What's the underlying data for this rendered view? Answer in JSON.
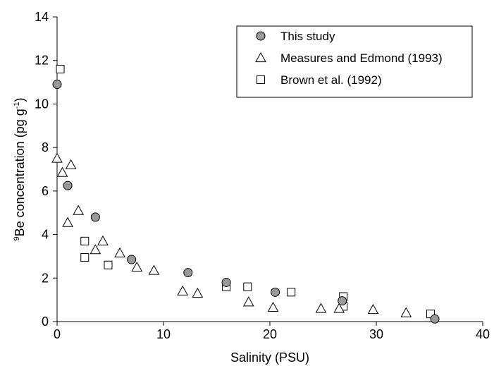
{
  "chart_data": {
    "type": "scatter",
    "title": "",
    "xlabel": "Salinity (PSU)",
    "ylabel": {
      "superscript": "9",
      "main": "Be concentration (pg g",
      "exponent": "-1",
      "close": ")"
    },
    "xlim": [
      0,
      40
    ],
    "ylim": [
      0,
      14
    ],
    "xticks": [
      "0",
      "10",
      "20",
      "30",
      "40"
    ],
    "yticks": [
      "0",
      "2",
      "4",
      "6",
      "8",
      "10",
      "12",
      "14"
    ],
    "grid": false,
    "legend_position": "top-right",
    "series": [
      {
        "name": "This study",
        "marker": "circle",
        "fill": "#999999",
        "points": [
          [
            0.0,
            10.9
          ],
          [
            1.0,
            6.25
          ],
          [
            3.6,
            4.8
          ],
          [
            7.0,
            2.85
          ],
          [
            12.3,
            2.25
          ],
          [
            15.9,
            1.8
          ],
          [
            20.5,
            1.35
          ],
          [
            26.8,
            0.95
          ],
          [
            35.5,
            0.12
          ]
        ]
      },
      {
        "name": "Measures and Edmond (1993)",
        "marker": "triangle",
        "fill": "#ffffff",
        "points": [
          [
            0.0,
            7.5
          ],
          [
            0.5,
            6.85
          ],
          [
            1.3,
            7.2
          ],
          [
            1.0,
            4.55
          ],
          [
            2.0,
            5.1
          ],
          [
            3.6,
            3.3
          ],
          [
            4.3,
            3.7
          ],
          [
            5.9,
            3.15
          ],
          [
            7.5,
            2.5
          ],
          [
            9.1,
            2.35
          ],
          [
            11.8,
            1.4
          ],
          [
            13.2,
            1.3
          ],
          [
            18.0,
            0.9
          ],
          [
            20.3,
            0.65
          ],
          [
            24.8,
            0.6
          ],
          [
            26.5,
            0.6
          ],
          [
            29.7,
            0.55
          ],
          [
            32.8,
            0.4
          ]
        ]
      },
      {
        "name": "Brown et al. (1992)",
        "marker": "square",
        "fill": "#ffffff",
        "points": [
          [
            0.3,
            11.6
          ],
          [
            2.6,
            3.7
          ],
          [
            2.6,
            2.95
          ],
          [
            4.8,
            2.6
          ],
          [
            15.9,
            1.6
          ],
          [
            17.9,
            1.6
          ],
          [
            22.0,
            1.35
          ],
          [
            26.9,
            1.15
          ],
          [
            26.9,
            0.7
          ],
          [
            35.1,
            0.35
          ]
        ]
      }
    ]
  }
}
